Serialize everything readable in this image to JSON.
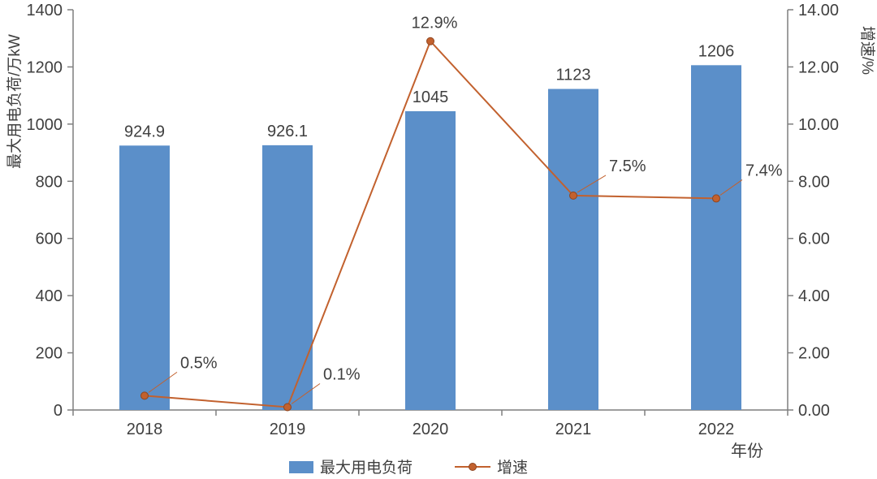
{
  "chart_data": {
    "type": "bar",
    "subtype": "bar+line-combo",
    "categories": [
      "2018",
      "2019",
      "2020",
      "2021",
      "2022"
    ],
    "series": [
      {
        "name": "最大用电负荷",
        "type": "bar",
        "axis": "left",
        "values": [
          924.9,
          926.1,
          1045,
          1123,
          1206
        ],
        "labels": [
          "924.9",
          "926.1",
          "1045",
          "1123",
          "1206"
        ],
        "color": "#5B8FC9"
      },
      {
        "name": "增速",
        "type": "line",
        "axis": "right",
        "values": [
          0.5,
          0.1,
          12.9,
          7.5,
          7.4
        ],
        "labels": [
          "0.5%",
          "0.1%",
          "12.9%",
          "7.5%",
          "7.4%"
        ],
        "color": "#C2612E"
      }
    ],
    "left_axis": {
      "title": "最大用电负荷/万kW",
      "min": 0,
      "max": 1400,
      "step": 200,
      "tick_labels": [
        "0",
        "200",
        "400",
        "600",
        "800",
        "1000",
        "1200",
        "1400"
      ]
    },
    "right_axis": {
      "title": "增速/%",
      "min": 0,
      "max": 14,
      "step": 2,
      "tick_labels": [
        "0.00",
        "2.00",
        "4.00",
        "6.00",
        "8.00",
        "10.00",
        "12.00",
        "14.00"
      ]
    },
    "x_axis": {
      "title": "年份"
    },
    "legend": [
      {
        "label": "最大用电负荷",
        "marker": "bar",
        "color": "#5B8FC9"
      },
      {
        "label": "增速",
        "marker": "line-dot",
        "color": "#C2612E"
      }
    ],
    "grid": false,
    "legend_position": "bottom-center",
    "colors": {
      "text": "#3F3F3F",
      "axis": "#7F7F7F",
      "background": "#FFFFFF"
    }
  }
}
